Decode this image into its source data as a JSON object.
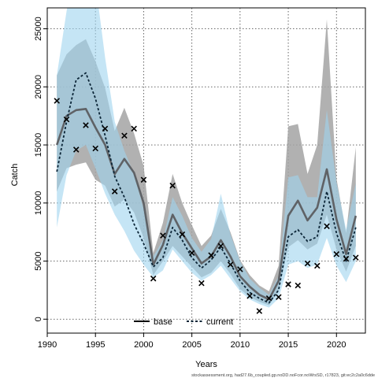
{
  "chart_data": {
    "type": "line",
    "xlabel": "Years",
    "ylabel": "Catch",
    "xlim": [
      1990,
      2023
    ],
    "ylim": [
      -1200,
      26800
    ],
    "grid": true,
    "legend_placement": "bottom-center",
    "footer_text": "stockassessment.org, had27.6b_coupled.gp.noDD.noFcor.noWrsSD, r17823, git:ec2c2a0c6dde",
    "x_ticks": [
      1990,
      1995,
      2000,
      2005,
      2010,
      2015,
      2020
    ],
    "y_ticks": [
      0,
      5000,
      10000,
      15000,
      20000,
      25000
    ],
    "colors": {
      "base_line": "#5f6266",
      "base_band": "#a3a3a3",
      "current_line": "#0a2436",
      "current_band": "#9fd3ee",
      "observed": "#000000"
    },
    "series": [
      {
        "name": "base",
        "x": [
          1991,
          1992,
          1993,
          1994,
          1995,
          1996,
          1997,
          1998,
          1999,
          2000,
          2001,
          2002,
          2003,
          2004,
          2005,
          2006,
          2007,
          2008,
          2009,
          2010,
          2011,
          2012,
          2013,
          2014,
          2015,
          2016,
          2017,
          2018,
          2019,
          2020,
          2021,
          2022
        ],
        "values": [
          15000,
          17500,
          18000,
          18100,
          16500,
          15000,
          12500,
          13800,
          12600,
          10000,
          4700,
          6400,
          9000,
          7400,
          6100,
          4800,
          5400,
          6800,
          5400,
          3700,
          2800,
          2100,
          1700,
          3300,
          8900,
          10200,
          8500,
          9600,
          12900,
          8600,
          5600,
          8900
        ],
        "lower": [
          11000,
          13000,
          13300,
          13500,
          12000,
          11500,
          9700,
          10300,
          9200,
          7000,
          3800,
          5000,
          6300,
          5400,
          4500,
          3600,
          4000,
          5000,
          3900,
          2600,
          1900,
          1500,
          1200,
          2400,
          6200,
          6800,
          6000,
          6500,
          9000,
          6000,
          4100,
          6300
        ],
        "upper": [
          21000,
          22800,
          23600,
          24100,
          22200,
          19900,
          16200,
          18200,
          16000,
          13200,
          5700,
          8300,
          12500,
          10000,
          8100,
          6300,
          7200,
          9500,
          7500,
          5100,
          3800,
          2900,
          2400,
          4600,
          16600,
          16800,
          12500,
          15000,
          25800,
          12100,
          7400,
          14800
        ]
      },
      {
        "name": "current",
        "x": [
          1991,
          1992,
          1993,
          1994,
          1995,
          1996,
          1997,
          1998,
          1999,
          2000,
          2001,
          2002,
          2003,
          2004,
          2005,
          2006,
          2007,
          2008,
          2009,
          2010,
          2011,
          2012,
          2013,
          2014,
          2015,
          2016,
          2017,
          2018,
          2019,
          2020,
          2021,
          2022
        ],
        "values": [
          12700,
          17000,
          20600,
          21200,
          19000,
          15800,
          12300,
          10500,
          8200,
          6500,
          4500,
          5300,
          7900,
          6800,
          5300,
          4400,
          5100,
          6200,
          4800,
          3300,
          2300,
          1800,
          1400,
          2500,
          7100,
          7700,
          6700,
          7100,
          11000,
          7400,
          5000,
          7900
        ],
        "lower": [
          7900,
          12400,
          14500,
          15000,
          13000,
          10800,
          9000,
          7600,
          5900,
          4700,
          3600,
          4200,
          6000,
          5000,
          4000,
          3300,
          3800,
          4600,
          3500,
          2400,
          1700,
          1300,
          1000,
          1800,
          4700,
          5000,
          4400,
          4700,
          7000,
          4600,
          3200,
          5000
        ],
        "upper": [
          21000,
          26500,
          31000,
          32500,
          29000,
          22500,
          17000,
          14500,
          12500,
          9500,
          5400,
          6800,
          10500,
          8900,
          7000,
          5800,
          6900,
          10800,
          7300,
          5000,
          3500,
          2700,
          2100,
          3700,
          12200,
          12400,
          10500,
          10500,
          18000,
          11800,
          7700,
          11700
        ]
      }
    ],
    "observed": {
      "x": [
        1991,
        1992,
        1993,
        1994,
        1995,
        1996,
        1997,
        1998,
        1999,
        2000,
        2001,
        2002,
        2003,
        2004,
        2005,
        2006,
        2007,
        2008,
        2009,
        2010,
        2011,
        2012,
        2013,
        2014,
        2015,
        2016,
        2017,
        2018,
        2019,
        2020,
        2021,
        2022
      ],
      "values": [
        18800,
        17200,
        14600,
        16700,
        14700,
        16400,
        11000,
        15800,
        16400,
        12000,
        3500,
        7200,
        11500,
        7300,
        5700,
        3100,
        5500,
        6300,
        4700,
        4300,
        2000,
        700,
        1800,
        1900,
        3000,
        2900,
        4800,
        4600,
        8000,
        5600,
        5200,
        5300
      ]
    }
  }
}
